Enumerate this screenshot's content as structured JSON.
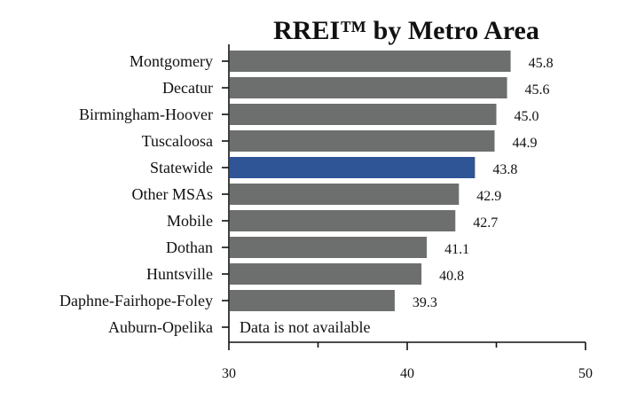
{
  "chart_data": {
    "type": "bar",
    "orientation": "horizontal",
    "title": "RREI™ by Metro Area",
    "xlabel": "",
    "ylabel": "",
    "xlim": [
      30,
      50
    ],
    "xticks": [
      30,
      40,
      50
    ],
    "xtick_labels": [
      "30",
      "40",
      "50"
    ],
    "grid": false,
    "legend": "none",
    "bars": [
      {
        "category": "Montgomery",
        "value": 45.8,
        "label": "45.8",
        "color": "#6d6e6e"
      },
      {
        "category": "Decatur",
        "value": 45.6,
        "label": "45.6",
        "color": "#6d6e6e"
      },
      {
        "category": "Birmingham-Hoover",
        "value": 45.0,
        "label": "45.0",
        "color": "#6d6e6e"
      },
      {
        "category": "Tuscaloosa",
        "value": 44.9,
        "label": "44.9",
        "color": "#6d6e6e"
      },
      {
        "category": "Statewide",
        "value": 43.8,
        "label": "43.8",
        "color": "#2f5597"
      },
      {
        "category": "Other MSAs",
        "value": 42.9,
        "label": "42.9",
        "color": "#6d6e6e"
      },
      {
        "category": "Mobile",
        "value": 42.7,
        "label": "42.7",
        "color": "#6d6e6e"
      },
      {
        "category": "Dothan",
        "value": 41.1,
        "label": "41.1",
        "color": "#6d6e6e"
      },
      {
        "category": "Huntsville",
        "value": 40.8,
        "label": "40.8",
        "color": "#6d6e6e"
      },
      {
        "category": "Daphne-Fairhope-Foley",
        "value": 39.3,
        "label": "39.3",
        "color": "#6d6e6e"
      },
      {
        "category": "Auburn-Opelika",
        "value": null,
        "label": "Data is not available",
        "color": "#6d6e6e"
      }
    ]
  }
}
